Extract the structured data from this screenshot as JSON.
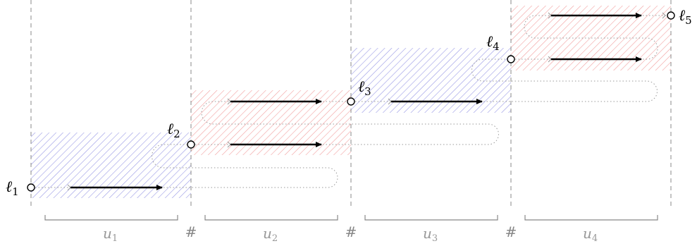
{
  "nodes": [
    {
      "base": "ℓ",
      "sub": "1"
    },
    {
      "base": "ℓ",
      "sub": "2"
    },
    {
      "base": "ℓ",
      "sub": "3"
    },
    {
      "base": "ℓ",
      "sub": "4"
    },
    {
      "base": "ℓ",
      "sub": "5"
    }
  ],
  "segments": [
    {
      "base": "u",
      "sub": "1"
    },
    {
      "base": "u",
      "sub": "2"
    },
    {
      "base": "u",
      "sub": "3"
    },
    {
      "base": "u",
      "sub": "4"
    }
  ],
  "separator": "#",
  "colors": {
    "blue_hatch": "#9a9ae6",
    "red_hatch": "#f2a0a0",
    "arrow": "#000000",
    "dotted": "#999999",
    "dashed": "#888888",
    "brace": "#888888",
    "segment_label": "#999999"
  }
}
